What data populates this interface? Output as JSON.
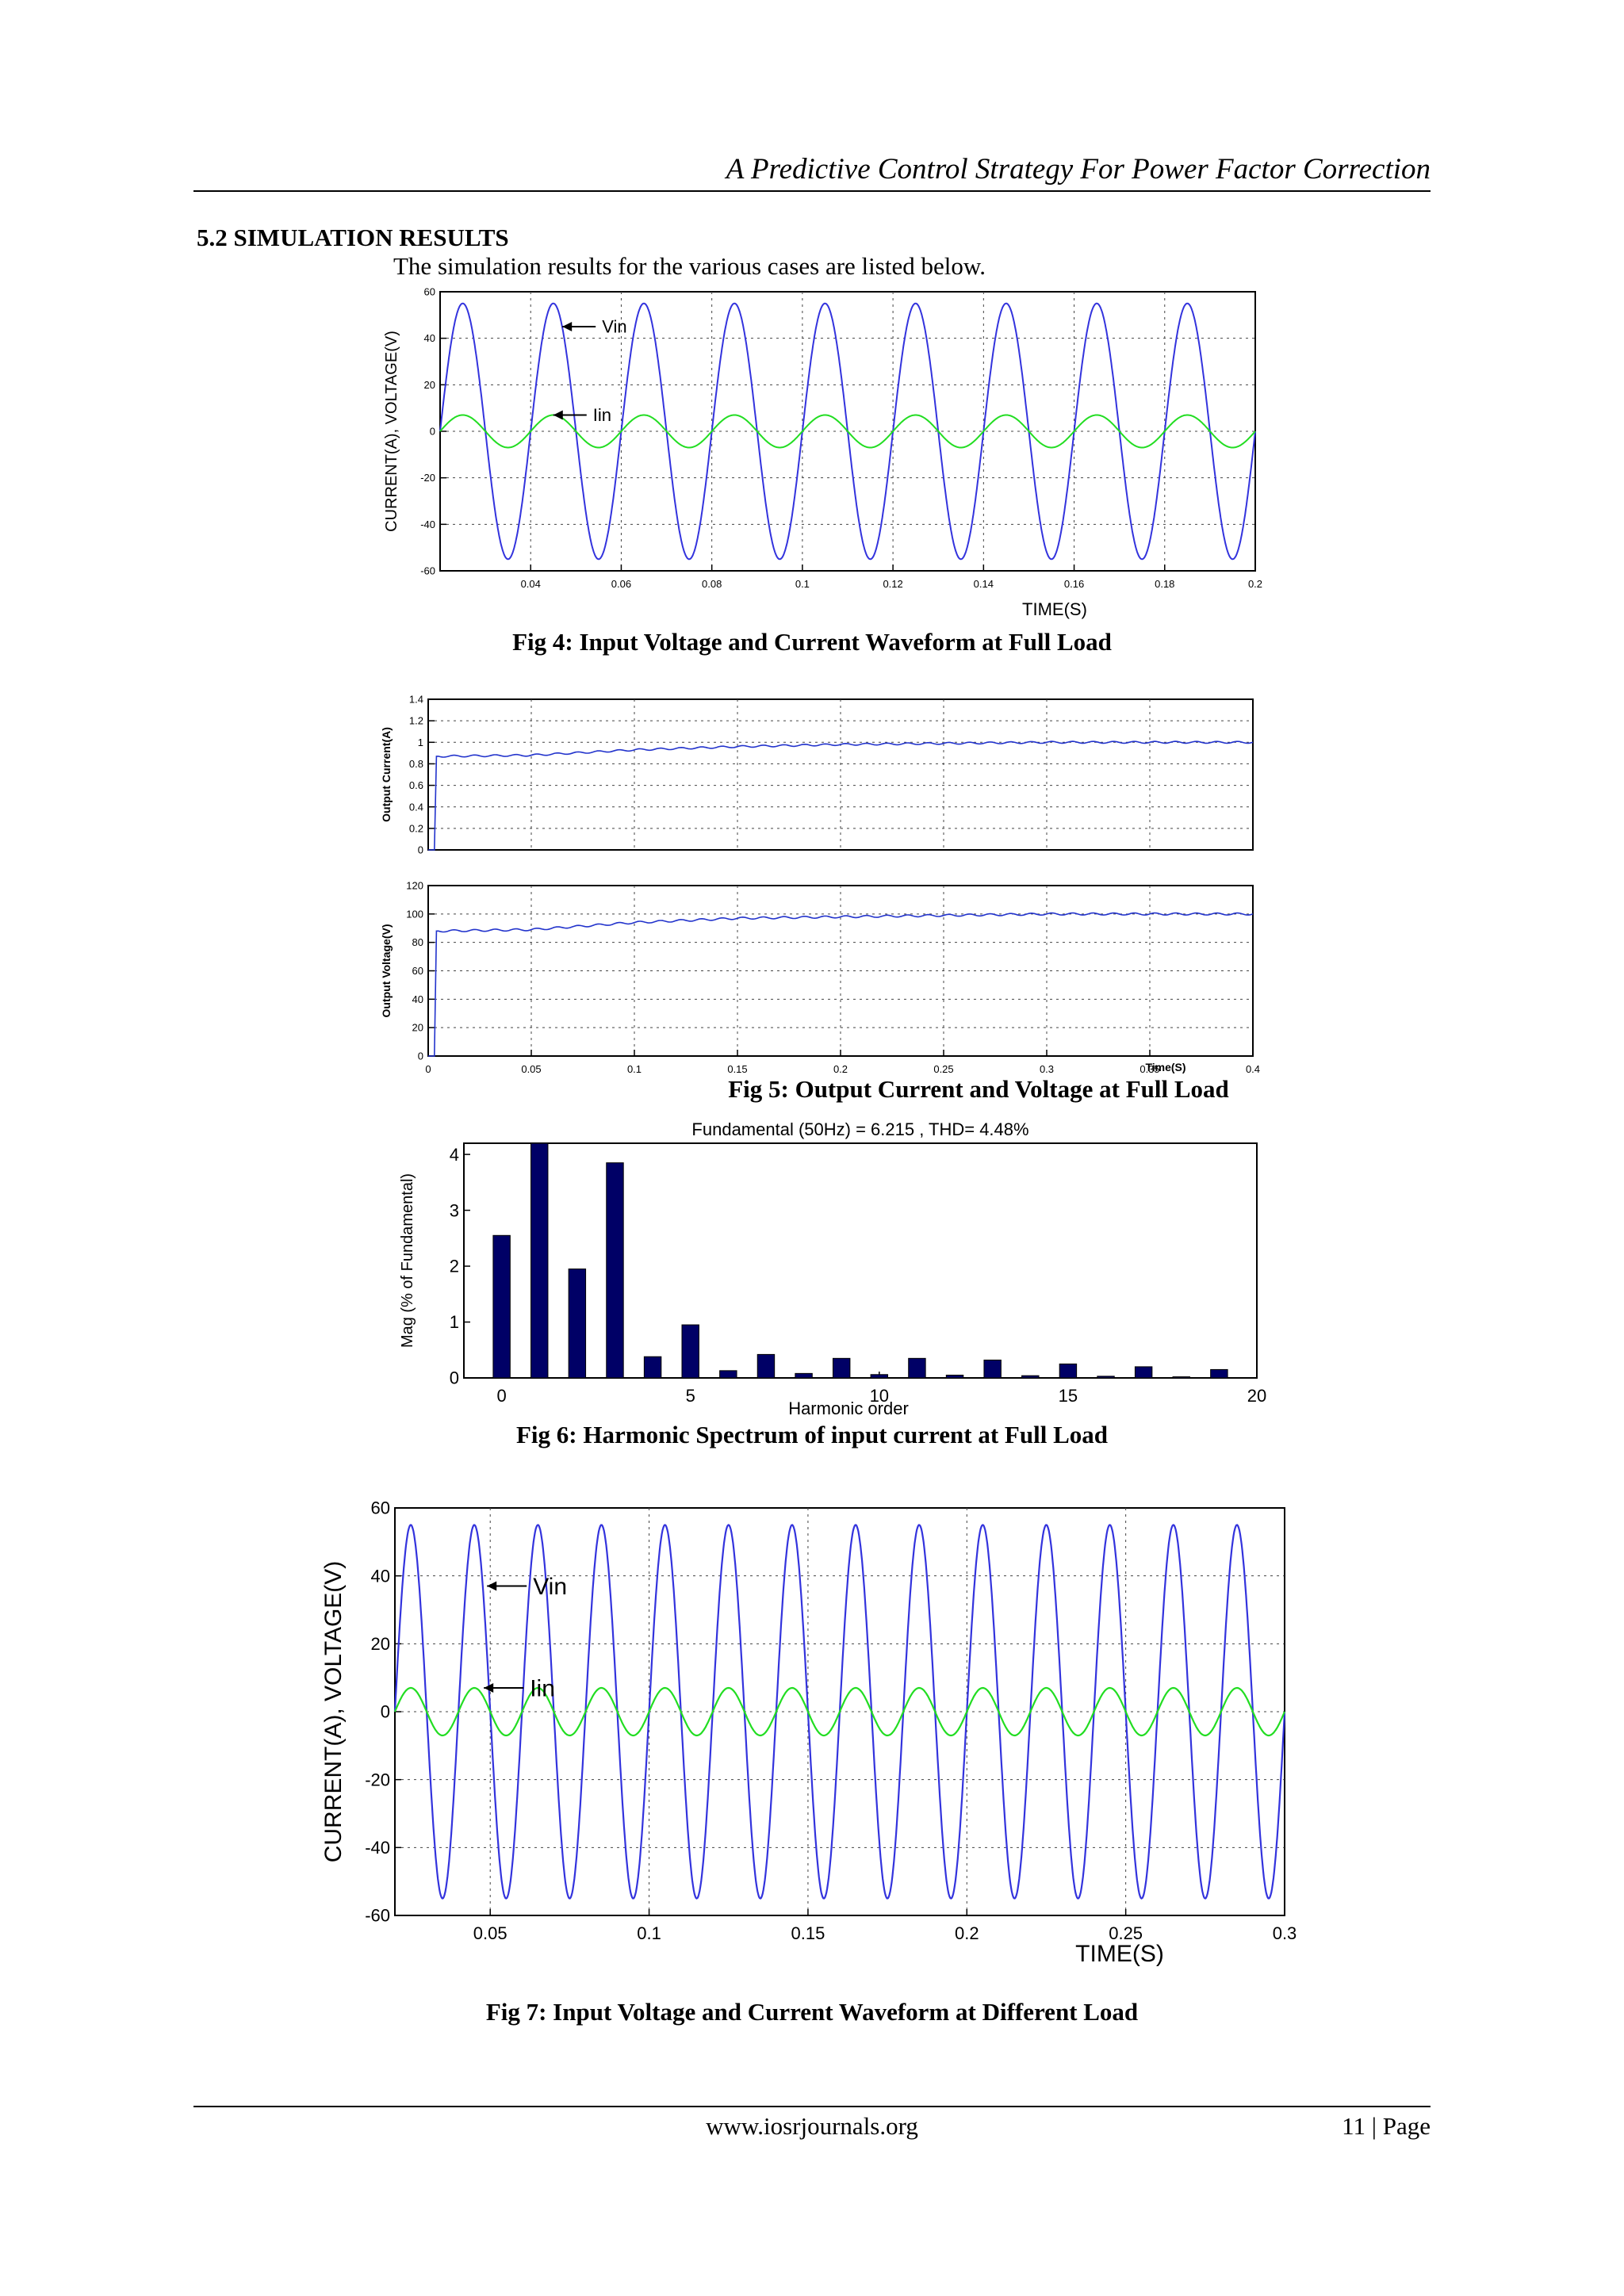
{
  "header": {
    "title": "A Predictive Control Strategy For Power Factor Correction"
  },
  "section": {
    "heading": "5.2 SIMULATION RESULTS",
    "intro": "The simulation results for the various cases are listed below."
  },
  "figures": {
    "fig4": {
      "caption": "Fig 4:  Input Voltage and Current Waveform at Full Load"
    },
    "fig5": {
      "caption": "Fig 5: Output Current and Voltage at Full Load"
    },
    "fig6": {
      "caption": "Fig 6: Harmonic Spectrum of input current at Full Load"
    },
    "fig7": {
      "caption": "Fig 7: Input Voltage and Current Waveform at Different Load"
    }
  },
  "colors": {
    "voltage": "#3333dd",
    "current": "#22dd22",
    "bar": "#000066"
  },
  "footer": {
    "site": "www.iosrjournals.org",
    "page": "11 | Page"
  },
  "chart_data": [
    {
      "id": "fig4",
      "type": "line",
      "xlabel": "TIME(S)",
      "ylabel": "CURRENT(A), VOLTAGE(V)",
      "xlim": [
        0.02,
        0.2
      ],
      "ylim": [
        -60,
        60
      ],
      "xticks": [
        "0.04",
        "0.06",
        "0.08",
        "0.1",
        "0.12",
        "0.14",
        "0.16",
        "0.18",
        "0.2"
      ],
      "yticks": [
        "60",
        "40",
        "20",
        "0",
        "-20",
        "-40",
        "-60"
      ],
      "grid": true,
      "frequency_hz": 50,
      "annotations": [
        {
          "text": "Vin",
          "x": 0.047,
          "y": 45
        },
        {
          "text": "Iin",
          "x": 0.045,
          "y": 7
        }
      ],
      "series": [
        {
          "name": "Vin",
          "amplitude": 55,
          "color": "#3333dd"
        },
        {
          "name": "Iin",
          "amplitude": 7,
          "color": "#22dd22"
        }
      ]
    },
    {
      "id": "fig5a",
      "type": "line",
      "xlabel": "",
      "ylabel": "Output Current(A)",
      "xlim": [
        0,
        0.4
      ],
      "ylim": [
        0,
        1.4
      ],
      "yticks": [
        "1.4",
        "1.2",
        "1",
        "0.8",
        "0.6",
        "0.4",
        "0.2",
        "0"
      ],
      "grid": true,
      "series": [
        {
          "name": "",
          "x": [
            0,
            0.005,
            0.05,
            0.1,
            0.15,
            0.2,
            0.25,
            0.3,
            0.35,
            0.4
          ],
          "y": [
            0,
            0.87,
            0.88,
            0.93,
            0.96,
            0.98,
            0.99,
            1.0,
            1.0,
            1.0
          ]
        }
      ]
    },
    {
      "id": "fig5b",
      "type": "line",
      "xlabel": "Time(S)",
      "ylabel": "Output Voltage(V)",
      "xlim": [
        0,
        0.4
      ],
      "ylim": [
        0,
        120
      ],
      "xticks": [
        "0",
        "0.05",
        "0.1",
        "0.15",
        "0.2",
        "0.25",
        "0.3",
        "0.35",
        "0.4"
      ],
      "yticks": [
        "120",
        "100",
        "80",
        "60",
        "40",
        "20",
        "0"
      ],
      "grid": true,
      "series": [
        {
          "name": "",
          "x": [
            0,
            0.005,
            0.05,
            0.1,
            0.15,
            0.2,
            0.25,
            0.3,
            0.35,
            0.4
          ],
          "y": [
            0,
            88,
            89,
            94,
            97,
            98,
            99,
            100,
            100,
            100
          ]
        }
      ]
    },
    {
      "id": "fig6",
      "type": "bar",
      "title": "Fundamental (50Hz) = 6.215 , THD= 4.48%",
      "xlabel": "Harmonic order",
      "ylabel": "Mag (% of Fundamental)",
      "xlim": [
        -1,
        20
      ],
      "ylim": [
        0,
        4.2
      ],
      "xticks": [
        "0",
        "5",
        "10",
        "15",
        "20"
      ],
      "yticks": [
        "4",
        "3",
        "2",
        "1",
        "0"
      ],
      "grid": false,
      "categories": [
        0,
        1,
        2,
        3,
        4,
        5,
        6,
        7,
        8,
        9,
        10,
        11,
        12,
        13,
        14,
        15,
        16,
        17,
        18,
        19
      ],
      "values": [
        2.55,
        4.2,
        1.95,
        3.85,
        0.38,
        0.95,
        0.13,
        0.42,
        0.08,
        0.35,
        0.06,
        0.35,
        0.05,
        0.32,
        0.04,
        0.25,
        0.03,
        0.2,
        0.02,
        0.15
      ]
    },
    {
      "id": "fig7",
      "type": "line",
      "xlabel": "TIME(S)",
      "ylabel": "CURRENT(A), VOLTAGE(V)",
      "xlim": [
        0.02,
        0.3
      ],
      "ylim": [
        -60,
        60
      ],
      "xticks": [
        "0.05",
        "0.1",
        "0.15",
        "0.2",
        "0.25",
        "0.3"
      ],
      "yticks": [
        "60",
        "40",
        "20",
        "0",
        "-20",
        "-40",
        "-60"
      ],
      "grid": true,
      "frequency_hz": 50,
      "annotations": [
        {
          "text": "Vin",
          "x": 0.049,
          "y": 37
        },
        {
          "text": "Iin",
          "x": 0.048,
          "y": 7
        }
      ],
      "series": [
        {
          "name": "Vin",
          "amplitude": 55,
          "color": "#3333dd"
        },
        {
          "name": "Iin",
          "amplitude": 7,
          "color": "#22dd22"
        }
      ]
    }
  ]
}
